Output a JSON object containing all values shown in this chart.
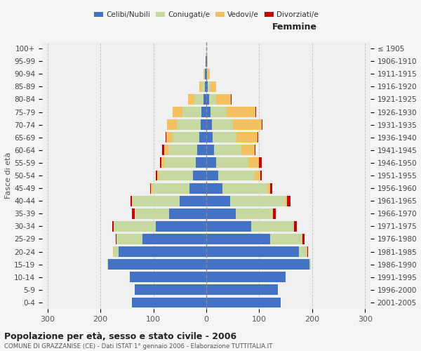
{
  "age_groups": [
    "0-4",
    "5-9",
    "10-14",
    "15-19",
    "20-24",
    "25-29",
    "30-34",
    "35-39",
    "40-44",
    "45-49",
    "50-54",
    "55-59",
    "60-64",
    "65-69",
    "70-74",
    "75-79",
    "80-84",
    "85-89",
    "90-94",
    "95-99",
    "100+"
  ],
  "birth_years": [
    "2001-2005",
    "1996-2000",
    "1991-1995",
    "1986-1990",
    "1981-1985",
    "1976-1980",
    "1971-1975",
    "1966-1970",
    "1961-1965",
    "1956-1960",
    "1951-1955",
    "1946-1950",
    "1941-1945",
    "1936-1940",
    "1931-1935",
    "1926-1930",
    "1921-1925",
    "1916-1920",
    "1911-1915",
    "1906-1910",
    "≤ 1905"
  ],
  "male_celibi": [
    140,
    135,
    145,
    185,
    165,
    120,
    95,
    70,
    50,
    32,
    25,
    20,
    17,
    13,
    11,
    9,
    5,
    3,
    2,
    1,
    0
  ],
  "male_coniugati": [
    0,
    0,
    0,
    2,
    10,
    50,
    80,
    65,
    90,
    70,
    65,
    60,
    55,
    50,
    45,
    36,
    18,
    6,
    2,
    0,
    0
  ],
  "male_vedovi": [
    0,
    0,
    0,
    0,
    1,
    0,
    0,
    0,
    1,
    2,
    3,
    5,
    8,
    12,
    18,
    18,
    12,
    4,
    1,
    0,
    0
  ],
  "male_divorziati": [
    0,
    0,
    0,
    0,
    0,
    1,
    3,
    5,
    2,
    2,
    2,
    2,
    3,
    2,
    0,
    0,
    0,
    0,
    0,
    0,
    0
  ],
  "female_celibi": [
    140,
    135,
    150,
    195,
    175,
    120,
    85,
    55,
    45,
    30,
    22,
    18,
    14,
    12,
    10,
    8,
    5,
    3,
    1,
    1,
    0
  ],
  "female_coniugati": [
    0,
    0,
    0,
    3,
    15,
    60,
    80,
    70,
    105,
    85,
    70,
    62,
    52,
    45,
    40,
    30,
    14,
    5,
    2,
    0,
    0
  ],
  "female_vedovi": [
    0,
    0,
    0,
    0,
    1,
    1,
    1,
    1,
    3,
    5,
    10,
    20,
    25,
    40,
    55,
    55,
    28,
    10,
    3,
    1,
    0
  ],
  "female_divorziati": [
    0,
    0,
    0,
    0,
    1,
    5,
    5,
    5,
    6,
    5,
    2,
    4,
    2,
    1,
    1,
    1,
    1,
    0,
    0,
    0,
    0
  ],
  "colors": {
    "celibi": "#4472c4",
    "coniugati": "#c5d9a0",
    "vedovi": "#f5c060",
    "divorziati": "#cc0000"
  },
  "title": "Popolazione per età, sesso e stato civile - 2006",
  "subtitle": "COMUNE DI GRAZZANISE (CE) - Dati ISTAT 1° gennaio 2006 - Elaborazione TUTTITALIA.IT",
  "xlabel_right": "Femmine",
  "ylabel_left": "Fasce di età",
  "xlim": 310,
  "bg_color": "#f0f0f0",
  "grid_color": "#cccccc"
}
